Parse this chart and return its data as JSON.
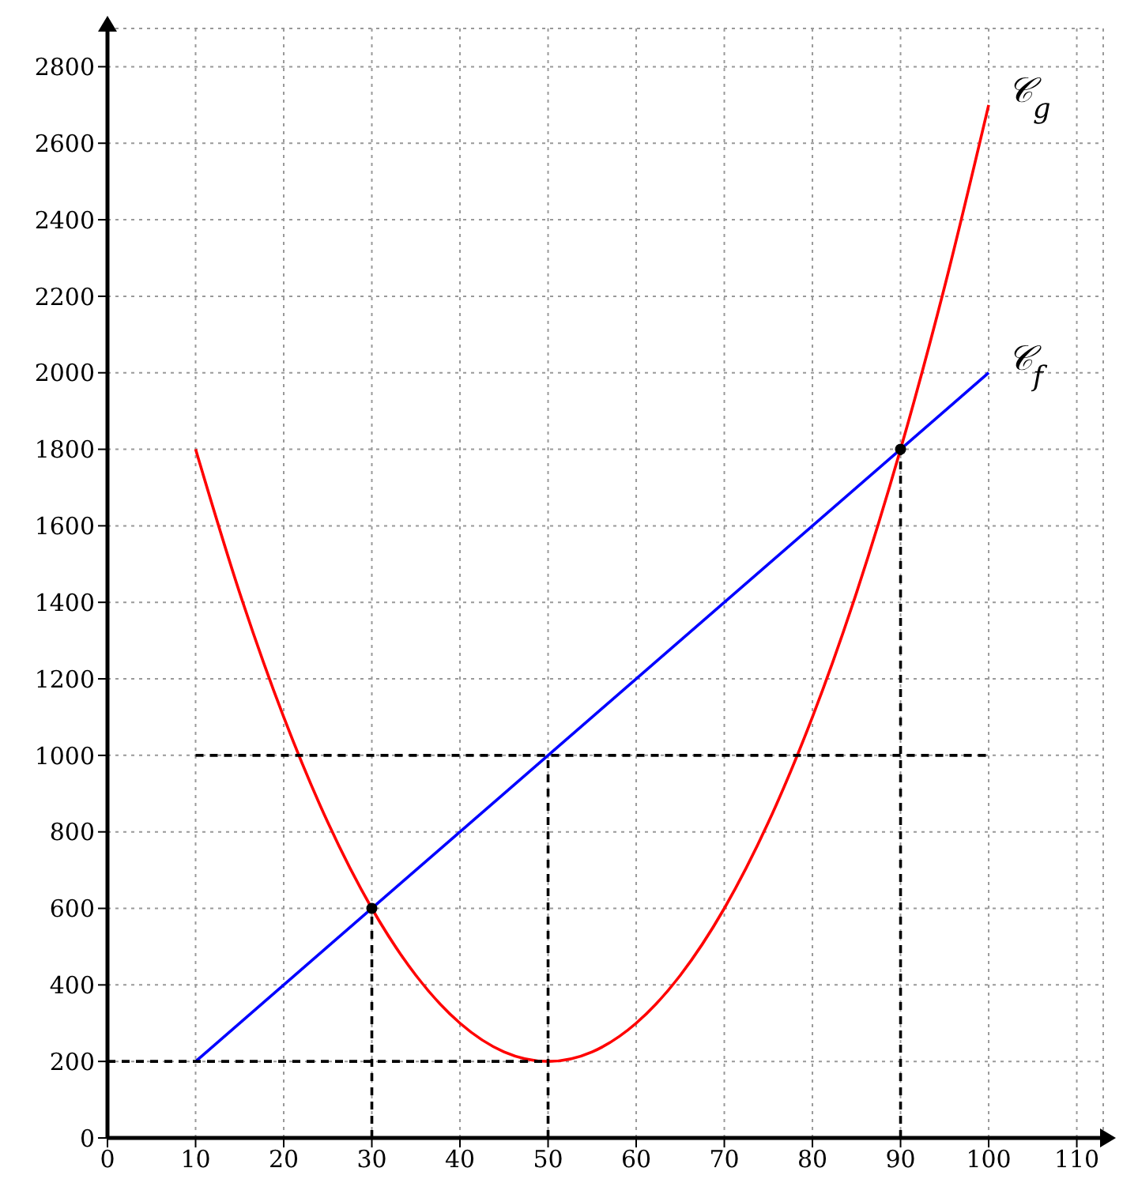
{
  "chart_data": {
    "type": "line",
    "xlim": [
      0,
      113
    ],
    "ylim": [
      0,
      2900
    ],
    "xticks": [
      0,
      10,
      20,
      30,
      40,
      50,
      60,
      70,
      80,
      90,
      100,
      110
    ],
    "yticks": [
      0,
      200,
      400,
      600,
      800,
      1000,
      1200,
      1400,
      1600,
      1800,
      2000,
      2200,
      2400,
      2600,
      2800
    ],
    "grid": true,
    "marker": "none",
    "line_style": "solid",
    "series": [
      {
        "name": "𝒞$_{g}$",
        "color": "#ff0000",
        "x": [
          10,
          15,
          20,
          25,
          30,
          35,
          40,
          45,
          50,
          55,
          60,
          65,
          70,
          75,
          80,
          85,
          90,
          95,
          100
        ],
        "values": [
          1800,
          1425,
          1100,
          825,
          600,
          425,
          300,
          225,
          200,
          225,
          300,
          425,
          600,
          825,
          1100,
          1425,
          1800,
          2225,
          2700
        ]
      },
      {
        "name": "𝒞$_{f}$",
        "color": "#0000ff",
        "x": [
          10,
          100
        ],
        "values": [
          200,
          2000
        ]
      },
      {
        "type": "line",
        "color": "#000000",
        "line_style": "dashed",
        "x": [
          0,
          50
        ],
        "values": [
          200,
          200
        ]
      },
      {
        "type": "line",
        "color": "#000000",
        "line_style": "dashed",
        "x": [
          10,
          100
        ],
        "values": [
          1000,
          1000
        ]
      },
      {
        "type": "line",
        "color": "#000000",
        "line_style": "dashed",
        "x": [
          30,
          30
        ],
        "values": [
          0,
          600
        ]
      },
      {
        "type": "line",
        "color": "#000000",
        "line_style": "dashed",
        "x": [
          50,
          50
        ],
        "values": [
          0,
          1000
        ]
      },
      {
        "type": "line",
        "color": "#000000",
        "line_style": "dashed",
        "x": [
          90,
          90
        ],
        "values": [
          0,
          1800
        ]
      },
      {
        "type": "scatter",
        "color": "#000000",
        "marker": "circle",
        "x": [
          30,
          90
        ],
        "values": [
          600,
          1800
        ]
      }
    ]
  }
}
